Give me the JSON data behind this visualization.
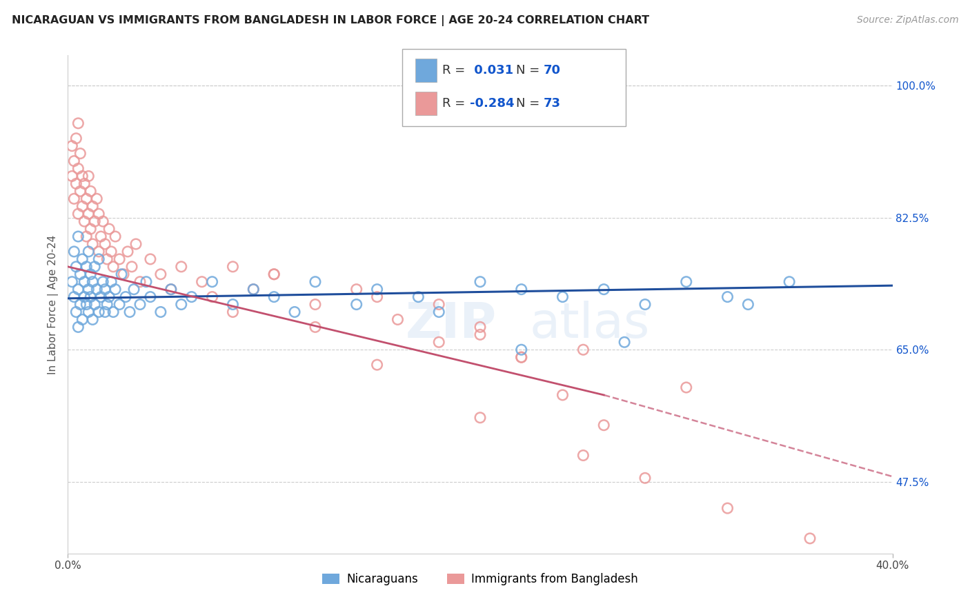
{
  "title": "NICARAGUAN VS IMMIGRANTS FROM BANGLADESH IN LABOR FORCE | AGE 20-24 CORRELATION CHART",
  "source": "Source: ZipAtlas.com",
  "ylabel": "In Labor Force | Age 20-24",
  "xlim": [
    0.0,
    0.4
  ],
  "ylim": [
    0.38,
    1.04
  ],
  "yticks_right": [
    1.0,
    0.825,
    0.65,
    0.475
  ],
  "yticklabels_right": [
    "100.0%",
    "82.5%",
    "65.0%",
    "47.5%"
  ],
  "r_nicaraguan": 0.031,
  "n_nicaraguan": 70,
  "r_bangladesh": -0.284,
  "n_bangladesh": 73,
  "blue_color": "#6fa8dc",
  "pink_color": "#ea9999",
  "blue_line_color": "#1f4e9c",
  "pink_line_color": "#c2506e",
  "grid_color": "#cccccc",
  "background_color": "#ffffff",
  "legend_label_1": "Nicaraguans",
  "legend_label_2": "Immigrants from Bangladesh",
  "nic_trend_x0": 0.0,
  "nic_trend_y0": 0.718,
  "nic_trend_x1": 0.4,
  "nic_trend_y1": 0.735,
  "ban_trend_x0": 0.0,
  "ban_trend_y0": 0.76,
  "ban_trend_x1_solid": 0.26,
  "ban_trend_y1_solid": 0.59,
  "ban_trend_x1_dash": 0.4,
  "ban_trend_y1_dash": 0.482,
  "nicaraguan_x": [
    0.002,
    0.003,
    0.003,
    0.004,
    0.004,
    0.005,
    0.005,
    0.005,
    0.006,
    0.006,
    0.007,
    0.007,
    0.008,
    0.008,
    0.009,
    0.009,
    0.01,
    0.01,
    0.01,
    0.011,
    0.011,
    0.012,
    0.012,
    0.013,
    0.013,
    0.014,
    0.015,
    0.015,
    0.016,
    0.017,
    0.018,
    0.018,
    0.019,
    0.02,
    0.021,
    0.022,
    0.023,
    0.025,
    0.026,
    0.028,
    0.03,
    0.032,
    0.035,
    0.038,
    0.04,
    0.045,
    0.05,
    0.055,
    0.06,
    0.07,
    0.08,
    0.09,
    0.1,
    0.11,
    0.12,
    0.14,
    0.15,
    0.17,
    0.18,
    0.2,
    0.22,
    0.24,
    0.26,
    0.28,
    0.3,
    0.32,
    0.33,
    0.35,
    0.22,
    0.27
  ],
  "nicaraguan_y": [
    0.74,
    0.72,
    0.78,
    0.7,
    0.76,
    0.68,
    0.73,
    0.8,
    0.71,
    0.75,
    0.69,
    0.77,
    0.72,
    0.74,
    0.71,
    0.76,
    0.7,
    0.73,
    0.78,
    0.72,
    0.75,
    0.69,
    0.74,
    0.71,
    0.76,
    0.73,
    0.7,
    0.77,
    0.72,
    0.74,
    0.7,
    0.73,
    0.71,
    0.72,
    0.74,
    0.7,
    0.73,
    0.71,
    0.75,
    0.72,
    0.7,
    0.73,
    0.71,
    0.74,
    0.72,
    0.7,
    0.73,
    0.71,
    0.72,
    0.74,
    0.71,
    0.73,
    0.72,
    0.7,
    0.74,
    0.71,
    0.73,
    0.72,
    0.7,
    0.74,
    0.73,
    0.72,
    0.73,
    0.71,
    0.74,
    0.72,
    0.71,
    0.74,
    0.65,
    0.66
  ],
  "bangladesh_x": [
    0.002,
    0.002,
    0.003,
    0.003,
    0.004,
    0.004,
    0.005,
    0.005,
    0.005,
    0.006,
    0.006,
    0.007,
    0.007,
    0.008,
    0.008,
    0.009,
    0.009,
    0.01,
    0.01,
    0.011,
    0.011,
    0.012,
    0.012,
    0.013,
    0.014,
    0.015,
    0.015,
    0.016,
    0.017,
    0.018,
    0.019,
    0.02,
    0.021,
    0.022,
    0.023,
    0.025,
    0.027,
    0.029,
    0.031,
    0.033,
    0.035,
    0.04,
    0.045,
    0.05,
    0.055,
    0.065,
    0.07,
    0.08,
    0.09,
    0.1,
    0.12,
    0.14,
    0.16,
    0.18,
    0.2,
    0.22,
    0.24,
    0.26,
    0.28,
    0.08,
    0.12,
    0.18,
    0.22,
    0.1,
    0.15,
    0.2,
    0.25,
    0.3,
    0.15,
    0.2,
    0.25,
    0.32,
    0.36
  ],
  "bangladesh_y": [
    0.92,
    0.88,
    0.9,
    0.85,
    0.87,
    0.93,
    0.83,
    0.89,
    0.95,
    0.86,
    0.91,
    0.84,
    0.88,
    0.82,
    0.87,
    0.8,
    0.85,
    0.83,
    0.88,
    0.81,
    0.86,
    0.79,
    0.84,
    0.82,
    0.85,
    0.78,
    0.83,
    0.8,
    0.82,
    0.79,
    0.77,
    0.81,
    0.78,
    0.76,
    0.8,
    0.77,
    0.75,
    0.78,
    0.76,
    0.79,
    0.74,
    0.77,
    0.75,
    0.73,
    0.76,
    0.74,
    0.72,
    0.76,
    0.73,
    0.75,
    0.71,
    0.73,
    0.69,
    0.71,
    0.67,
    0.64,
    0.59,
    0.55,
    0.48,
    0.7,
    0.68,
    0.66,
    0.64,
    0.75,
    0.72,
    0.68,
    0.65,
    0.6,
    0.63,
    0.56,
    0.51,
    0.44,
    0.4
  ]
}
